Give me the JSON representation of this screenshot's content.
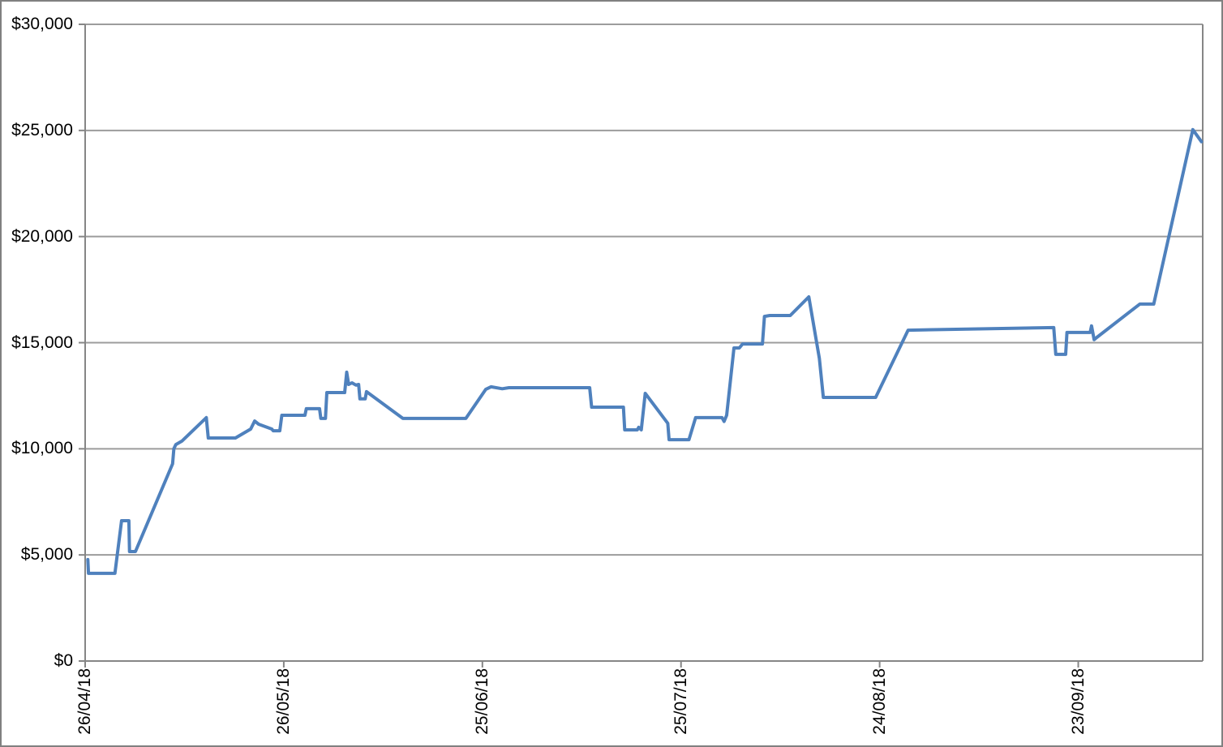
{
  "colors": {
    "line": "#4F81BD",
    "grid": "#9c9c9c",
    "axis": "#868686",
    "border": "#808080",
    "text": "#000000",
    "background": "#ffffff"
  },
  "chart_data": {
    "type": "line",
    "title": "",
    "legend": false,
    "grid": "horizontal",
    "x_axis": {
      "kind": "date",
      "tick_labels": [
        "26/04/18",
        "26/05/18",
        "25/06/18",
        "25/07/18",
        "24/08/18",
        "23/09/18"
      ],
      "tick_days": [
        0,
        30,
        60,
        90,
        120,
        150
      ],
      "range_days": [
        0,
        168.8
      ]
    },
    "y_axis": {
      "tick_labels": [
        "$0",
        "$5,000",
        "$10,000",
        "$15,000",
        "$20,000",
        "$25,000",
        "$30,000"
      ],
      "tick_values": [
        0,
        5000,
        10000,
        15000,
        20000,
        25000,
        30000
      ],
      "range": [
        0,
        30000
      ]
    },
    "series": [
      {
        "name": "value",
        "color": "#4F81BD",
        "points": [
          [
            0.4,
            4780
          ],
          [
            0.5,
            4130
          ],
          [
            4.5,
            4130
          ],
          [
            5.5,
            6610
          ],
          [
            6.6,
            6610
          ],
          [
            6.7,
            5160
          ],
          [
            7.6,
            5160
          ],
          [
            13.2,
            9290
          ],
          [
            13.4,
            10010
          ],
          [
            13.7,
            10200
          ],
          [
            14.6,
            10360
          ],
          [
            18.3,
            11470
          ],
          [
            18.6,
            10510
          ],
          [
            22.7,
            10510
          ],
          [
            25.0,
            10930
          ],
          [
            25.6,
            11310
          ],
          [
            26.2,
            11160
          ],
          [
            28.2,
            10930
          ],
          [
            28.4,
            10850
          ],
          [
            29.4,
            10850
          ],
          [
            29.7,
            11580
          ],
          [
            33.2,
            11580
          ],
          [
            33.4,
            11890
          ],
          [
            35.4,
            11890
          ],
          [
            35.6,
            11430
          ],
          [
            36.3,
            11430
          ],
          [
            36.5,
            12650
          ],
          [
            39.2,
            12650
          ],
          [
            39.5,
            13610
          ],
          [
            39.8,
            13030
          ],
          [
            40.3,
            13110
          ],
          [
            40.9,
            13000
          ],
          [
            41.3,
            13030
          ],
          [
            41.5,
            12350
          ],
          [
            42.3,
            12350
          ],
          [
            42.5,
            12690
          ],
          [
            48.0,
            11430
          ],
          [
            57.5,
            11430
          ],
          [
            60.5,
            12800
          ],
          [
            61.3,
            12920
          ],
          [
            63.0,
            12830
          ],
          [
            64.0,
            12880
          ],
          [
            76.2,
            12880
          ],
          [
            76.5,
            11960
          ],
          [
            81.3,
            11960
          ],
          [
            81.5,
            10890
          ],
          [
            83.4,
            10890
          ],
          [
            83.6,
            11010
          ],
          [
            84.0,
            10890
          ],
          [
            84.6,
            12610
          ],
          [
            88.0,
            11200
          ],
          [
            88.2,
            10430
          ],
          [
            91.2,
            10430
          ],
          [
            92.2,
            11470
          ],
          [
            96.2,
            11470
          ],
          [
            96.5,
            11290
          ],
          [
            96.9,
            11580
          ],
          [
            98.0,
            14750
          ],
          [
            98.8,
            14750
          ],
          [
            99.3,
            14940
          ],
          [
            102.3,
            14940
          ],
          [
            102.6,
            16240
          ],
          [
            103.4,
            16280
          ],
          [
            106.5,
            16280
          ],
          [
            109.3,
            17160
          ],
          [
            110.9,
            14260
          ],
          [
            111.5,
            12420
          ],
          [
            119.4,
            12420
          ],
          [
            124.3,
            15590
          ],
          [
            146.3,
            15710
          ],
          [
            146.6,
            14450
          ],
          [
            148.1,
            14450
          ],
          [
            148.3,
            15480
          ],
          [
            151.8,
            15480
          ],
          [
            152.0,
            15790
          ],
          [
            152.4,
            15140
          ],
          [
            152.8,
            15250
          ],
          [
            159.3,
            16820
          ],
          [
            161.4,
            16820
          ],
          [
            167.3,
            25040
          ],
          [
            168.6,
            24470
          ]
        ]
      }
    ]
  }
}
